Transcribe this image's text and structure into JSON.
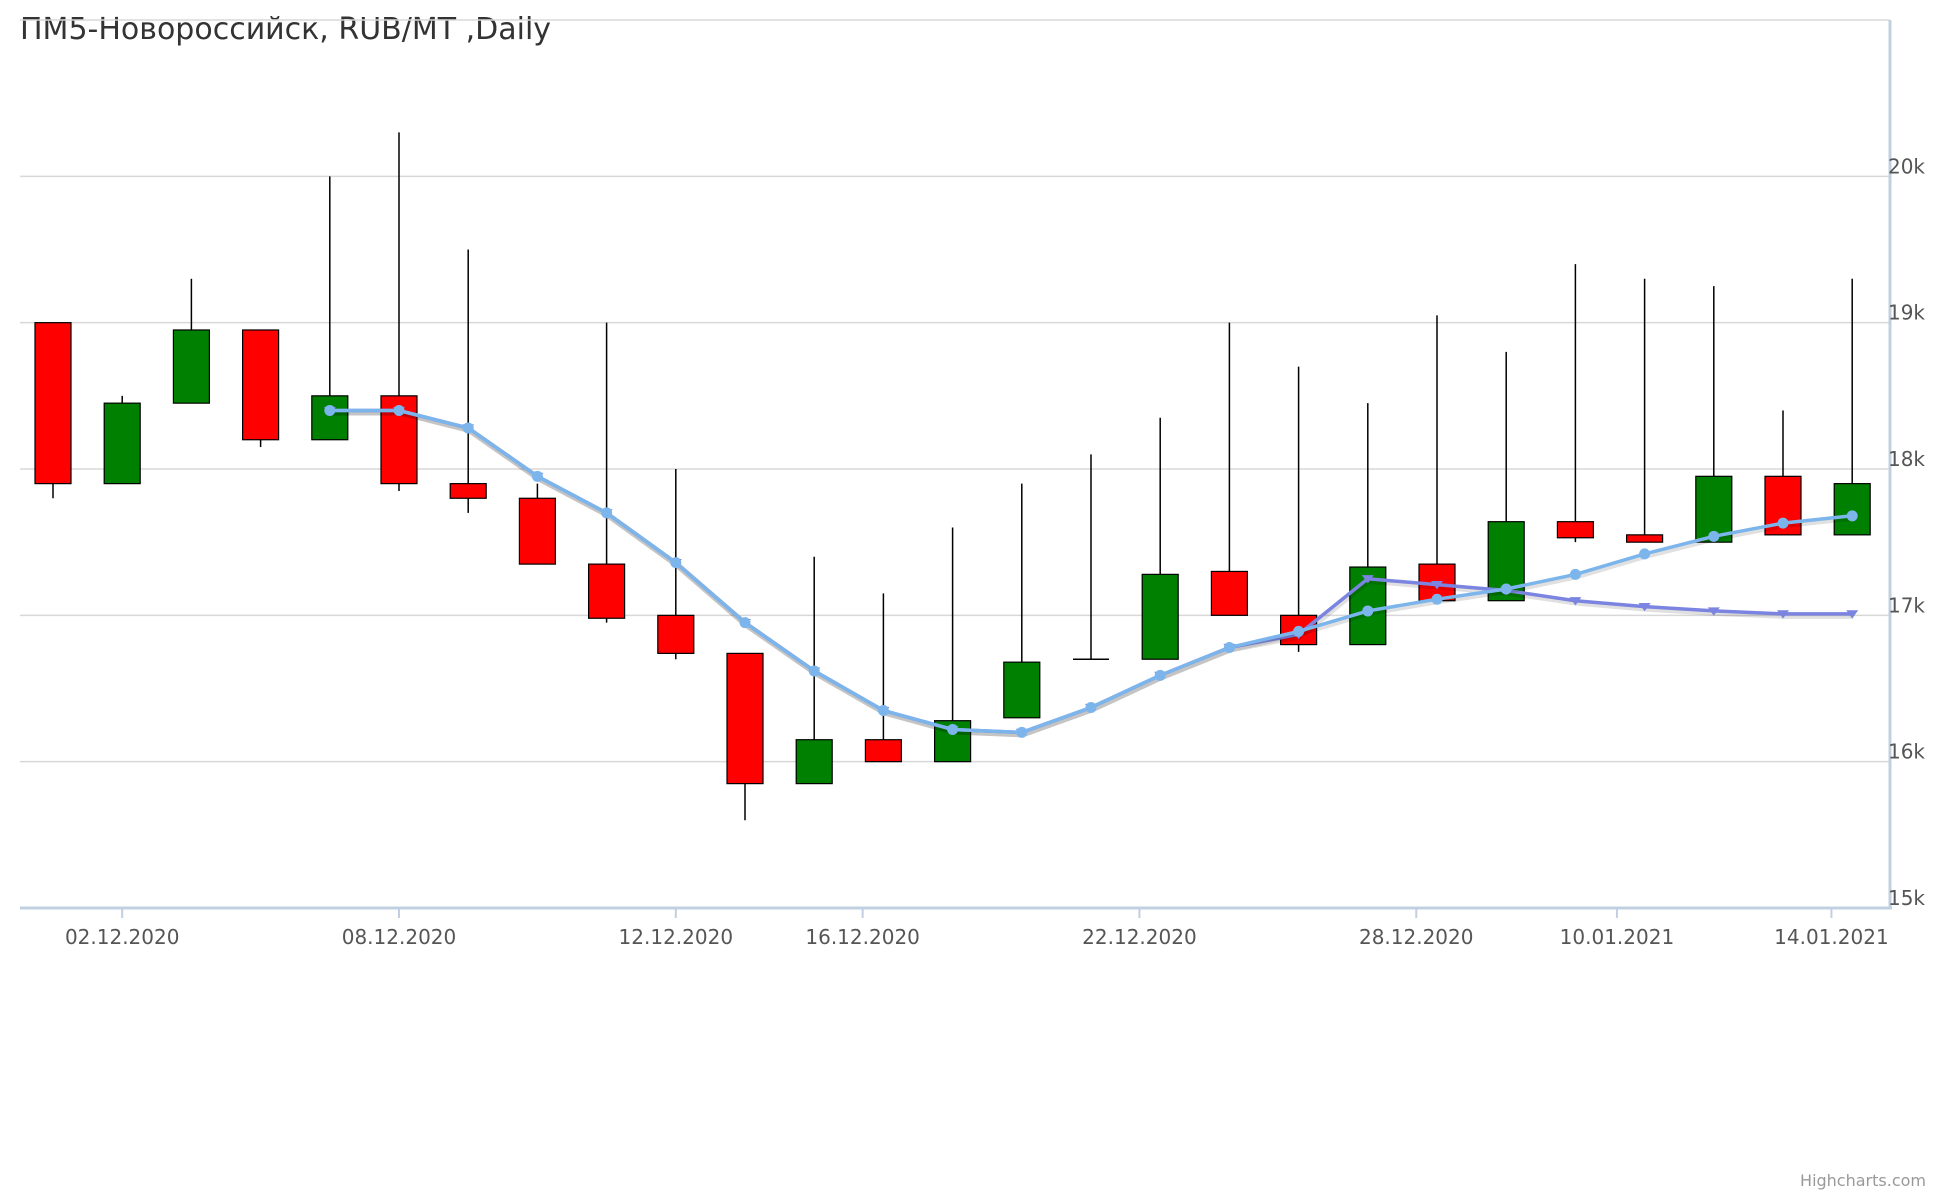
{
  "chart_data": {
    "type": "candlestick",
    "title": "ПМ5-Новороссийск, RUB/MT ,Daily",
    "credits": "Highcharts.com",
    "ylim": [
      15000,
      21000
    ],
    "y_ticks": [
      15000,
      16000,
      17000,
      18000,
      19000,
      20000
    ],
    "y_tick_labels": [
      "15k",
      "16k",
      "17k",
      "18k",
      "19k",
      "20k"
    ],
    "x_tick_labels": [
      {
        "index": 1,
        "label": "02.12.2020"
      },
      {
        "index": 5,
        "label": "08.12.2020"
      },
      {
        "index": 9,
        "label": "12.12.2020"
      },
      {
        "index": 11.7,
        "label": "16.12.2020"
      },
      {
        "index": 15.7,
        "label": "22.12.2020"
      },
      {
        "index": 19.7,
        "label": "28.12.2020"
      },
      {
        "index": 22.6,
        "label": "10.01.2021"
      },
      {
        "index": 25.7,
        "label": "14.01.2021"
      }
    ],
    "colors": {
      "up": "#008000",
      "down": "#ff0000",
      "wick": "#000000",
      "grid": "#d8d8d8",
      "axis": "#c0d0e0",
      "series1": "#7b84e0",
      "series2": "#7cb5ec"
    },
    "candles": [
      {
        "open": 19000,
        "high": 19000,
        "low": 17800,
        "close": 17900
      },
      {
        "open": 17900,
        "high": 18500,
        "low": 17900,
        "close": 18450
      },
      {
        "open": 18450,
        "high": 19300,
        "low": 18450,
        "close": 18950
      },
      {
        "open": 18950,
        "high": 18950,
        "low": 18150,
        "close": 18200
      },
      {
        "open": 18200,
        "high": 20000,
        "low": 18200,
        "close": 18500
      },
      {
        "open": 18500,
        "high": 20300,
        "low": 17850,
        "close": 17900
      },
      {
        "open": 17900,
        "high": 19500,
        "low": 17700,
        "close": 17800
      },
      {
        "open": 17800,
        "high": 17900,
        "low": 17350,
        "close": 17350
      },
      {
        "open": 17350,
        "high": 19000,
        "low": 16950,
        "close": 16980
      },
      {
        "open": 17000,
        "high": 18000,
        "low": 16700,
        "close": 16740
      },
      {
        "open": 16740,
        "high": 16740,
        "low": 15600,
        "close": 15850
      },
      {
        "open": 15850,
        "high": 17400,
        "low": 15850,
        "close": 16150
      },
      {
        "open": 16150,
        "high": 17150,
        "low": 16000,
        "close": 16000
      },
      {
        "open": 16000,
        "high": 17600,
        "low": 16000,
        "close": 16280
      },
      {
        "open": 16300,
        "high": 17900,
        "low": 16300,
        "close": 16680
      },
      {
        "open": 16700,
        "high": 18100,
        "low": 16700,
        "close": 16700
      },
      {
        "open": 16700,
        "high": 18350,
        "low": 16700,
        "close": 17280
      },
      {
        "open": 17300,
        "high": 19000,
        "low": 17000,
        "close": 17000
      },
      {
        "open": 17000,
        "high": 18700,
        "low": 16750,
        "close": 16800
      },
      {
        "open": 16800,
        "high": 18450,
        "low": 16800,
        "close": 17330
      },
      {
        "open": 17350,
        "high": 19050,
        "low": 17100,
        "close": 17100
      },
      {
        "open": 17100,
        "high": 18800,
        "low": 17100,
        "close": 17640
      },
      {
        "open": 17640,
        "high": 19400,
        "low": 17500,
        "close": 17530
      },
      {
        "open": 17550,
        "high": 19300,
        "low": 17500,
        "close": 17500
      },
      {
        "open": 17500,
        "high": 19250,
        "low": 17500,
        "close": 17950
      },
      {
        "open": 17950,
        "high": 18400,
        "low": 17550,
        "close": 17550
      },
      {
        "open": 17550,
        "high": 19300,
        "low": 17550,
        "close": 17900
      }
    ],
    "series": [
      {
        "marker": "triangle-down",
        "color": "#7b84e0",
        "points": [
          {
            "i": 4,
            "y": 18400
          },
          {
            "i": 5,
            "y": 18400
          },
          {
            "i": 6,
            "y": 18280
          },
          {
            "i": 7,
            "y": 17950
          },
          {
            "i": 8,
            "y": 17700
          },
          {
            "i": 9,
            "y": 17360
          },
          {
            "i": 10,
            "y": 16950
          },
          {
            "i": 11,
            "y": 16620
          },
          {
            "i": 12,
            "y": 16350
          },
          {
            "i": 13,
            "y": 16220
          },
          {
            "i": 14,
            "y": 16200
          },
          {
            "i": 15,
            "y": 16370
          },
          {
            "i": 16,
            "y": 16590
          },
          {
            "i": 17,
            "y": 16780
          },
          {
            "i": 18,
            "y": 16870
          },
          {
            "i": 19,
            "y": 17250
          },
          {
            "i": 20,
            "y": 17210
          },
          {
            "i": 21,
            "y": 17170
          },
          {
            "i": 22,
            "y": 17100
          },
          {
            "i": 23,
            "y": 17060
          },
          {
            "i": 24,
            "y": 17030
          },
          {
            "i": 25,
            "y": 17010
          },
          {
            "i": 26,
            "y": 17010
          }
        ]
      },
      {
        "marker": "circle",
        "color": "#7cb5ec",
        "points": [
          {
            "i": 4,
            "y": 18400
          },
          {
            "i": 5,
            "y": 18400
          },
          {
            "i": 6,
            "y": 18280
          },
          {
            "i": 7,
            "y": 17950
          },
          {
            "i": 8,
            "y": 17700
          },
          {
            "i": 9,
            "y": 17360
          },
          {
            "i": 10,
            "y": 16950
          },
          {
            "i": 11,
            "y": 16620
          },
          {
            "i": 12,
            "y": 16350
          },
          {
            "i": 13,
            "y": 16220
          },
          {
            "i": 14,
            "y": 16200
          },
          {
            "i": 15,
            "y": 16370
          },
          {
            "i": 16,
            "y": 16590
          },
          {
            "i": 17,
            "y": 16780
          },
          {
            "i": 18,
            "y": 16890
          },
          {
            "i": 19,
            "y": 17030
          },
          {
            "i": 20,
            "y": 17110
          },
          {
            "i": 21,
            "y": 17180
          },
          {
            "i": 22,
            "y": 17280
          },
          {
            "i": 23,
            "y": 17420
          },
          {
            "i": 24,
            "y": 17540
          },
          {
            "i": 25,
            "y": 17630
          },
          {
            "i": 26,
            "y": 17680
          }
        ]
      }
    ]
  }
}
